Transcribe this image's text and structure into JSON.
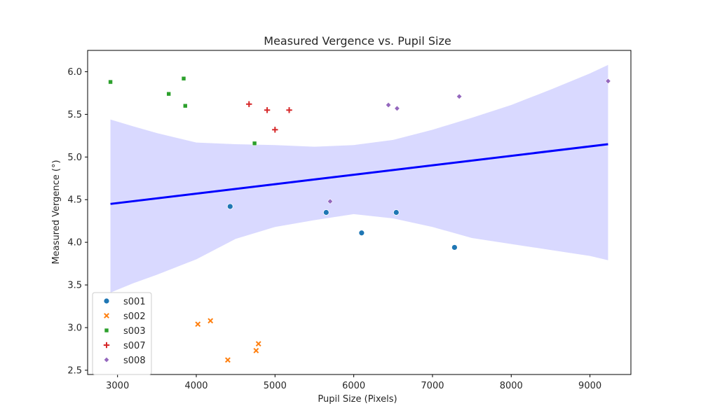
{
  "chart_data": {
    "type": "scatter",
    "title": "Measured Vergence vs. Pupil Size",
    "xlabel": "Pupil Size (Pixels)",
    "ylabel": "Measured Vergence (°)",
    "xlim": [
      2620,
      9520
    ],
    "ylim": [
      2.45,
      6.25
    ],
    "xticks": [
      3000,
      4000,
      5000,
      6000,
      7000,
      8000,
      9000
    ],
    "yticks": [
      2.5,
      3.0,
      3.5,
      4.0,
      4.5,
      5.0,
      5.5,
      6.0
    ],
    "grid": false,
    "legend_position": "lower-left",
    "series": [
      {
        "name": "s001",
        "color": "#1f77b4",
        "marker": "circle",
        "points": [
          [
            4430,
            4.42
          ],
          [
            5650,
            4.35
          ],
          [
            6100,
            4.11
          ],
          [
            6540,
            4.35
          ],
          [
            7280,
            3.94
          ]
        ]
      },
      {
        "name": "s002",
        "color": "#ff7f0e",
        "marker": "x",
        "points": [
          [
            4020,
            3.04
          ],
          [
            4180,
            3.08
          ],
          [
            4400,
            2.62
          ],
          [
            4760,
            2.73
          ],
          [
            4790,
            2.81
          ]
        ]
      },
      {
        "name": "s003",
        "color": "#2ca02c",
        "marker": "square",
        "points": [
          [
            2910,
            5.88
          ],
          [
            3650,
            5.74
          ],
          [
            3840,
            5.92
          ],
          [
            3860,
            5.6
          ],
          [
            4740,
            5.16
          ]
        ]
      },
      {
        "name": "s007",
        "color": "#d62728",
        "marker": "plus",
        "points": [
          [
            4670,
            5.62
          ],
          [
            4900,
            5.55
          ],
          [
            5000,
            5.32
          ],
          [
            5180,
            5.55
          ]
        ]
      },
      {
        "name": "s008",
        "color": "#9467bd",
        "marker": "diamond",
        "points": [
          [
            5700,
            4.48
          ],
          [
            6440,
            5.61
          ],
          [
            6550,
            5.57
          ],
          [
            7340,
            5.71
          ],
          [
            9230,
            5.89
          ]
        ]
      }
    ],
    "regression": {
      "color": "#0000ff",
      "line": [
        [
          2910,
          4.45
        ],
        [
          9230,
          5.15
        ]
      ],
      "ci_color": "#d9d9ff",
      "ci_upper": [
        [
          2910,
          5.44
        ],
        [
          3200,
          5.36
        ],
        [
          3500,
          5.28
        ],
        [
          4000,
          5.17
        ],
        [
          4500,
          5.15
        ],
        [
          5000,
          5.14
        ],
        [
          5500,
          5.12
        ],
        [
          6000,
          5.14
        ],
        [
          6500,
          5.2
        ],
        [
          7000,
          5.32
        ],
        [
          7500,
          5.46
        ],
        [
          8000,
          5.61
        ],
        [
          8500,
          5.79
        ],
        [
          9000,
          5.98
        ],
        [
          9230,
          6.08
        ]
      ],
      "ci_lower": [
        [
          2910,
          3.41
        ],
        [
          3200,
          3.52
        ],
        [
          3500,
          3.62
        ],
        [
          4000,
          3.8
        ],
        [
          4500,
          4.04
        ],
        [
          5000,
          4.18
        ],
        [
          5500,
          4.26
        ],
        [
          6000,
          4.33
        ],
        [
          6500,
          4.28
        ],
        [
          7000,
          4.18
        ],
        [
          7500,
          4.05
        ],
        [
          8000,
          3.98
        ],
        [
          8500,
          3.91
        ],
        [
          9000,
          3.84
        ],
        [
          9230,
          3.79
        ]
      ]
    }
  }
}
